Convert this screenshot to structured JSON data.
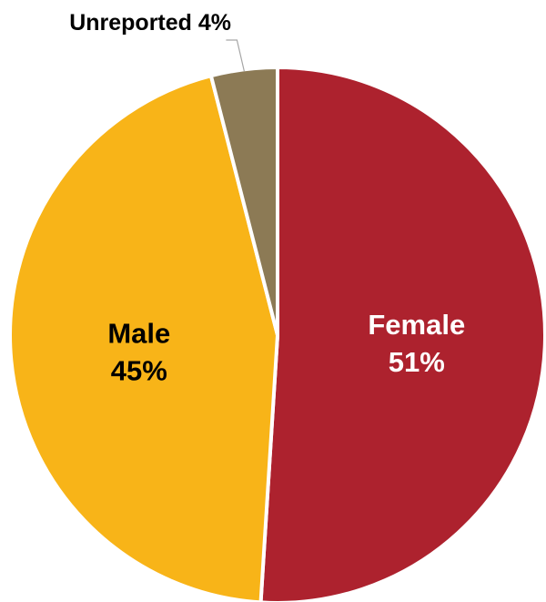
{
  "chart_data": {
    "type": "pie",
    "title": "",
    "slices": [
      {
        "name": "Female",
        "value": 51,
        "label_line1": "Female",
        "label_line2": "51%",
        "color": "#AD222E",
        "label_color": "#FFFFFF"
      },
      {
        "name": "Male",
        "value": 45,
        "label_line1": "Male",
        "label_line2": "45%",
        "color": "#F8B418",
        "label_color": "#000000"
      },
      {
        "name": "Unreported",
        "value": 4,
        "label_line1": "Unreported 4%",
        "label_line2": "",
        "color": "#8C7A55",
        "label_color": "#000000"
      }
    ],
    "start_angle_deg": 0,
    "direction": "clockwise",
    "slice_border_color": "#FFFFFF",
    "legend": "none",
    "leader_line_color": "#A6A6A6"
  }
}
